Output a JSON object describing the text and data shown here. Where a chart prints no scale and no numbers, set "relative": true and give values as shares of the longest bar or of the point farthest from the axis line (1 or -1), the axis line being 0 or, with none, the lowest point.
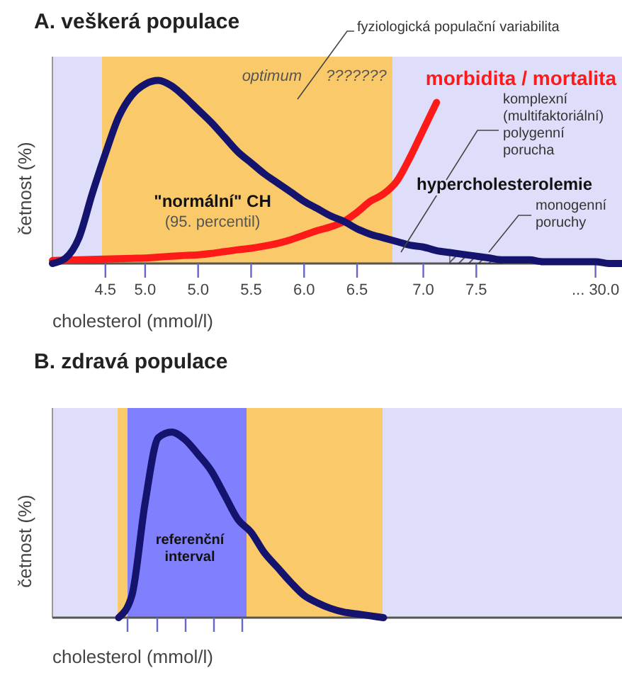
{
  "chart_data": [
    {
      "type": "line",
      "title": "A. veškerá populace",
      "xlabel": "cholesterol (mmol/l)",
      "ylabel": "četnost (%)",
      "relative": true,
      "tick_labels": "x",
      "categories": [
        null,
        null,
        null,
        null,
        "4.5",
        null,
        null,
        "5.0",
        null,
        null,
        null,
        "5.0",
        null,
        null,
        null,
        "5.5",
        null,
        null,
        null,
        "6.0",
        null,
        null,
        null,
        "6.5",
        null,
        null,
        null,
        null,
        "7.0",
        null,
        null,
        null,
        "7.5",
        null,
        null,
        null,
        null,
        null,
        null,
        null,
        null,
        "... 30.0",
        null,
        null
      ],
      "series": [
        {
          "type": "area",
          "color": "#333333",
          "values": [
            null,
            null,
            null,
            null,
            null,
            null,
            null,
            null,
            null,
            null,
            null,
            null,
            null,
            null,
            null,
            null,
            null,
            null,
            null,
            null,
            null,
            null,
            null,
            null,
            null,
            null,
            null,
            null,
            null,
            null,
            0.06,
            0.05,
            0.04,
            0.03,
            0.02,
            null,
            null,
            null,
            null,
            null,
            null,
            null,
            null,
            null
          ]
        },
        {
          "name": "morbidita / mortalita",
          "color": "#ff1a1a",
          "values": [
            0.016,
            0.018,
            0.02,
            0.022,
            0.024,
            0.026,
            0.028,
            0.03,
            0.035,
            0.04,
            0.044,
            0.047,
            0.055,
            0.065,
            0.075,
            0.083,
            0.095,
            0.11,
            0.13,
            0.155,
            0.18,
            0.2,
            0.23,
            0.28,
            0.34,
            0.38,
            0.45,
            0.58,
            0.73,
            0.88,
            null,
            null,
            null,
            null,
            null,
            null,
            null,
            null,
            null,
            null,
            null,
            null,
            null,
            null
          ]
        },
        {
          "color": "#14146e",
          "values": [
            0,
            0.03,
            0.14,
            0.38,
            0.6,
            0.8,
            0.92,
            0.98,
            1,
            0.97,
            0.91,
            0.84,
            0.77,
            0.69,
            0.61,
            0.55,
            0.49,
            0.44,
            0.39,
            0.34,
            0.3,
            0.26,
            0.23,
            0.19,
            0.16,
            0.14,
            0.12,
            0.1,
            0.09,
            0.07,
            0.06,
            0.05,
            0.04,
            0.03,
            0.02,
            0.02,
            0.02,
            0.01,
            0.01,
            0.01,
            0.01,
            0.01,
            0,
            0
          ]
        }
      ],
      "annotations": [
        "fyziologická populační variabilita",
        "optimum",
        "???????",
        "\"normální\" CH",
        "(95. percentil)",
        "komplexní\n(multifaktoriální)\npolygenní\nporucha",
        "hypercholesterolemie",
        "monogenní\nporuchy"
      ]
    },
    {
      "type": "line",
      "title": "B. zdravá populace",
      "xlabel": "cholesterol (mmol/l)",
      "ylabel": "četnost (%)",
      "relative": true,
      "tick_labels": false,
      "categories": [
        null,
        null,
        null,
        null,
        null,
        null,
        null,
        null,
        null,
        null,
        null,
        null,
        null,
        null,
        null,
        null,
        null,
        null,
        null,
        null,
        null,
        null,
        null,
        null,
        null,
        null,
        null,
        null,
        null,
        null,
        null,
        null,
        null,
        null,
        null,
        null,
        null,
        null,
        null,
        null,
        null,
        null,
        null,
        null
      ],
      "series": [
        {
          "color": "#14146e",
          "values": [
            null,
            null,
            null,
            null,
            null,
            0,
            0.12,
            0.62,
            0.97,
            1,
            0.96,
            0.88,
            0.79,
            0.66,
            0.53,
            0.46,
            0.35,
            0.27,
            0.19,
            0.12,
            0.08,
            0.05,
            0.03,
            0.02,
            0.01,
            0,
            null,
            null,
            null,
            null,
            null,
            null,
            null,
            null,
            null,
            null,
            null,
            null,
            null,
            null,
            null,
            null,
            null,
            null
          ]
        }
      ],
      "annotations": [
        "referenční\ninterval"
      ]
    }
  ]
}
